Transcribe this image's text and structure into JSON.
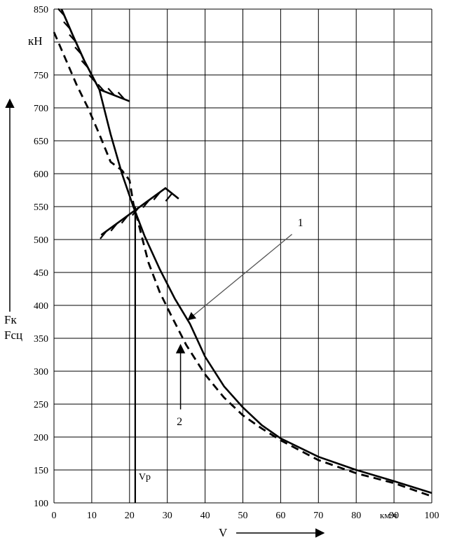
{
  "chart_data": {
    "type": "line",
    "x_ticks": [
      0,
      10,
      20,
      30,
      40,
      50,
      60,
      70,
      80,
      90,
      100
    ],
    "y_ticks": [
      100,
      150,
      200,
      250,
      300,
      350,
      400,
      450,
      500,
      550,
      600,
      650,
      700,
      750,
      800,
      850
    ],
    "xlim": [
      0,
      100
    ],
    "ylim": [
      100,
      850
    ],
    "grid": true,
    "y_unit": "кН",
    "x_unit": "км/ч",
    "xlabel": "V",
    "ylabel_1": "Fк",
    "ylabel_2": "Fсц",
    "vp_label": "Vр",
    "series": [
      {
        "name": "1",
        "style": "solid",
        "x": [
          2,
          5,
          8,
          12,
          15,
          18,
          21,
          24,
          28,
          32,
          36,
          40,
          45,
          50,
          55,
          60,
          70,
          80,
          90,
          100
        ],
        "y": [
          850,
          810,
          772,
          728,
          660,
          600,
          550,
          505,
          455,
          410,
          372,
          322,
          277,
          245,
          218,
          198,
          170,
          150,
          133,
          115
        ]
      },
      {
        "name": "2",
        "style": "dashed",
        "x": [
          0,
          3,
          6,
          9,
          12,
          15,
          18,
          20,
          21,
          23,
          25,
          28,
          31,
          35,
          40,
          45,
          50,
          55,
          60,
          70,
          80,
          90,
          100
        ],
        "y": [
          815,
          775,
          735,
          700,
          660,
          618,
          605,
          590,
          555,
          510,
          465,
          420,
          385,
          340,
          295,
          260,
          233,
          213,
          195,
          165,
          145,
          130,
          110
        ]
      }
    ],
    "annotations": [
      {
        "label": "1",
        "points_to_series": "1"
      },
      {
        "label": "2",
        "points_to_series": "2"
      }
    ],
    "vertical_line_x": 21.5
  }
}
